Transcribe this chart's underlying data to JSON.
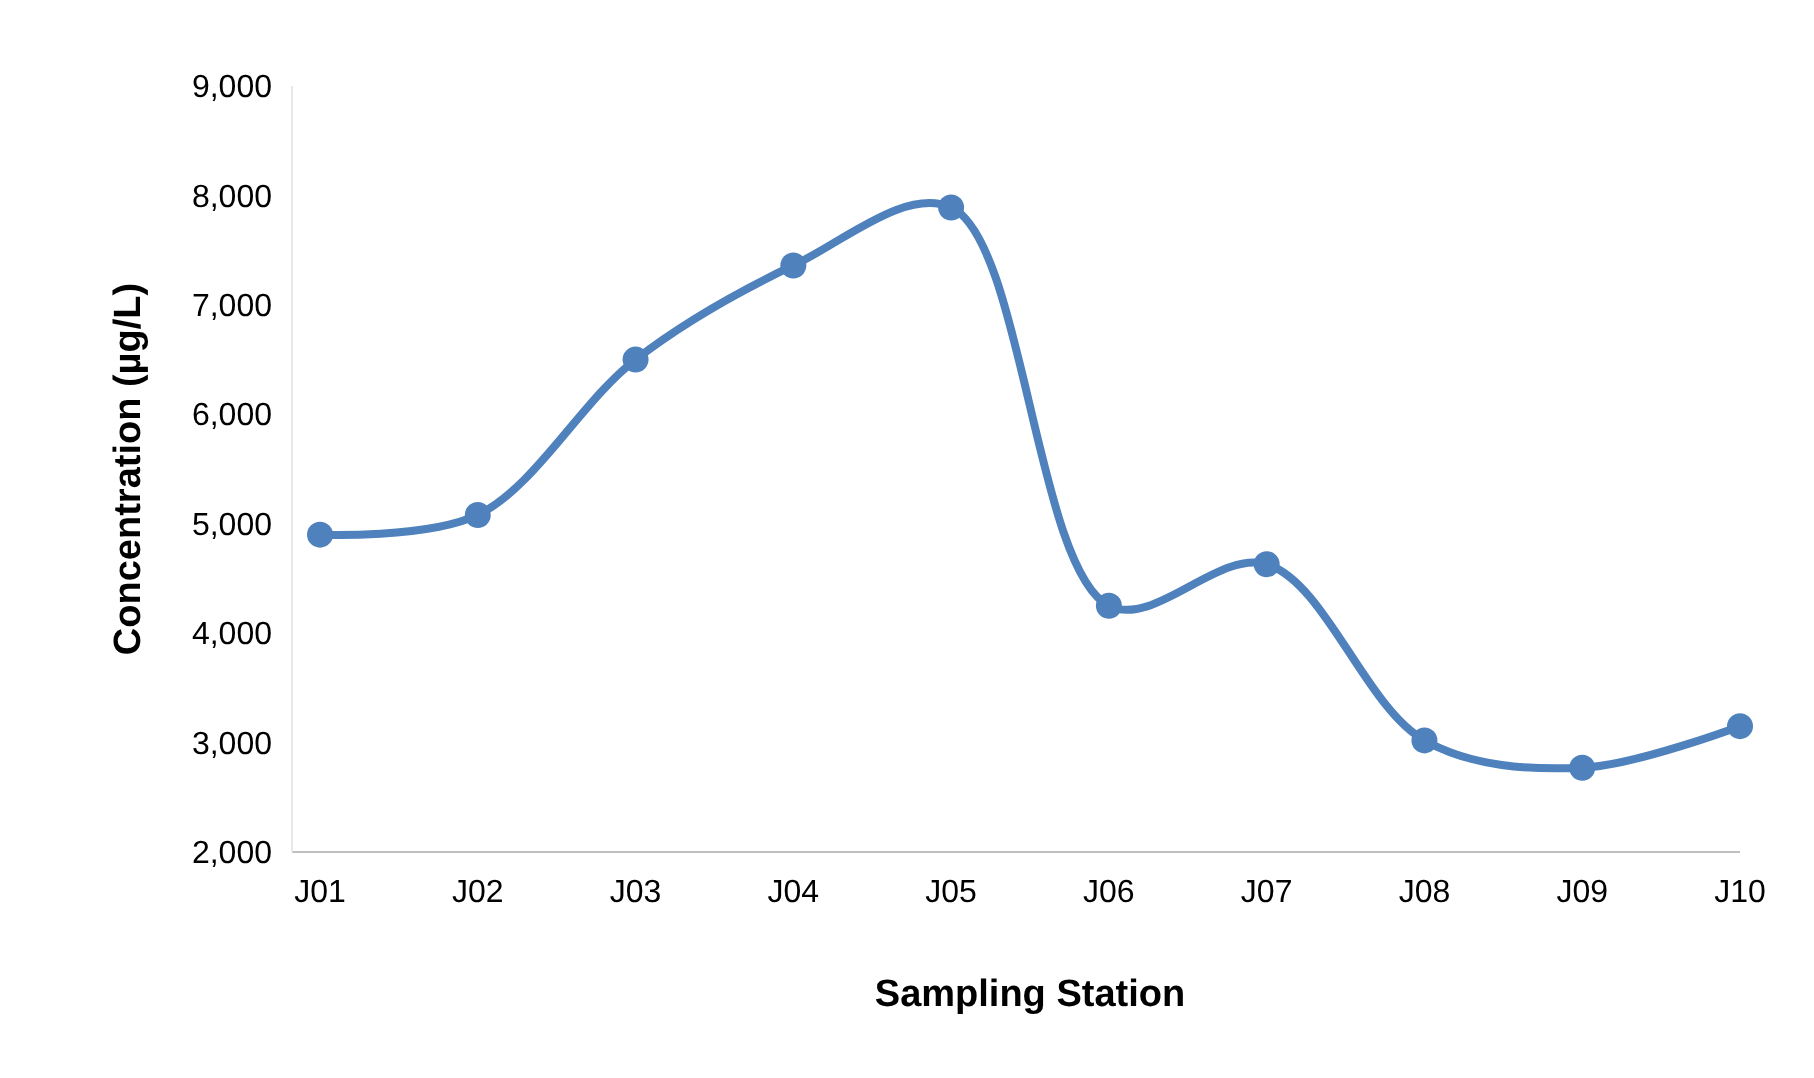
{
  "chart_data": {
    "type": "line",
    "xlabel": "Sampling Station",
    "ylabel": "Concentration (µg/L)",
    "categories": [
      "J01",
      "J02",
      "J03",
      "J04",
      "J05",
      "J06",
      "J07",
      "J08",
      "J09",
      "J10"
    ],
    "series": [
      {
        "color": "#4f81bd",
        "values": [
          4900,
          5080,
          6500,
          7360,
          7890,
          4250,
          4630,
          3020,
          2770,
          3150
        ]
      }
    ],
    "ylim": [
      2000,
      9000
    ],
    "yticks": [
      {
        "value": 2000,
        "label": "2,000"
      },
      {
        "value": 3000,
        "label": "3,000"
      },
      {
        "value": 4000,
        "label": "4,000"
      },
      {
        "value": 5000,
        "label": "5,000"
      },
      {
        "value": 6000,
        "label": "6,000"
      },
      {
        "value": 7000,
        "label": "7,000"
      },
      {
        "value": 8000,
        "label": "8,000"
      },
      {
        "value": 9000,
        "label": "9,000"
      }
    ],
    "marker": "circle",
    "line_style": "solid"
  }
}
